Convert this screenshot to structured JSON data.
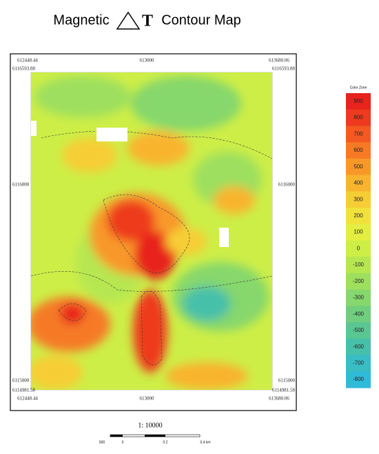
{
  "title": {
    "before": "Magnetic",
    "symbol": "T",
    "after": "Contour Map"
  },
  "map": {
    "top": [
      "612448.44",
      "613000",
      "613680.06"
    ],
    "left": [
      "6116593.88",
      "6116000",
      "6115000",
      "6114981.58"
    ],
    "right": [
      "6116593.88",
      "6116000",
      "6115000",
      "6114981.58"
    ],
    "bottom": [
      "612448.44",
      "613000",
      "613680.06"
    ]
  },
  "legend": {
    "title": "Color Zone",
    "entries": [
      {
        "label": "900",
        "color": "#e8231c"
      },
      {
        "label": "800",
        "color": "#ee3a1e"
      },
      {
        "label": "700",
        "color": "#f35a21"
      },
      {
        "label": "600",
        "color": "#f67a25"
      },
      {
        "label": "500",
        "color": "#f89829"
      },
      {
        "label": "400",
        "color": "#f9b42f"
      },
      {
        "label": "300",
        "color": "#f7cd35"
      },
      {
        "label": "200",
        "color": "#f0e13b"
      },
      {
        "label": "100",
        "color": "#e3ee40"
      },
      {
        "label": "0",
        "color": "#cdee47"
      },
      {
        "label": "-100",
        "color": "#b6e751"
      },
      {
        "label": "-200",
        "color": "#9edf5e"
      },
      {
        "label": "-300",
        "color": "#86d76c"
      },
      {
        "label": "-400",
        "color": "#6fcf7e"
      },
      {
        "label": "-500",
        "color": "#5ac792"
      },
      {
        "label": "-600",
        "color": "#47c0aa"
      },
      {
        "label": "-700",
        "color": "#39bcc4"
      },
      {
        "label": "-800",
        "color": "#30bad9"
      }
    ]
  },
  "scale": {
    "ratio": "1: 10000",
    "labels": [
      "500",
      "0",
      "0.2",
      "0.4 km"
    ]
  }
}
